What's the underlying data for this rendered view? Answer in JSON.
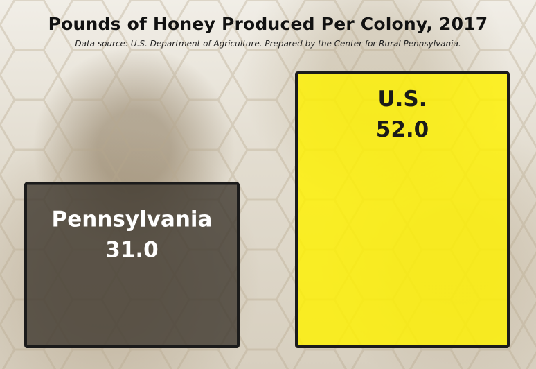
{
  "chart_data": {
    "type": "bar",
    "title": "Pounds of Honey Produced Per Colony, 2017",
    "subtitle": "Data source: U.S. Department of Agriculture. Prepared by the Center for Rural Pennsylvania.",
    "categories": [
      "Pennsylvania",
      "U.S."
    ],
    "values": [
      31.0,
      52.0
    ],
    "value_labels": [
      "31.0",
      "52.0"
    ],
    "xlabel": "",
    "ylabel": "",
    "ylim": [
      0,
      52
    ],
    "grid": false,
    "legend": "none",
    "colors": {
      "pennsylvania_fill": "#3b352b",
      "us_fill": "#fff200",
      "pennsylvania_text": "#ffffff",
      "us_text": "#1a1a1a",
      "bar_border": "#1b1b1b"
    }
  }
}
